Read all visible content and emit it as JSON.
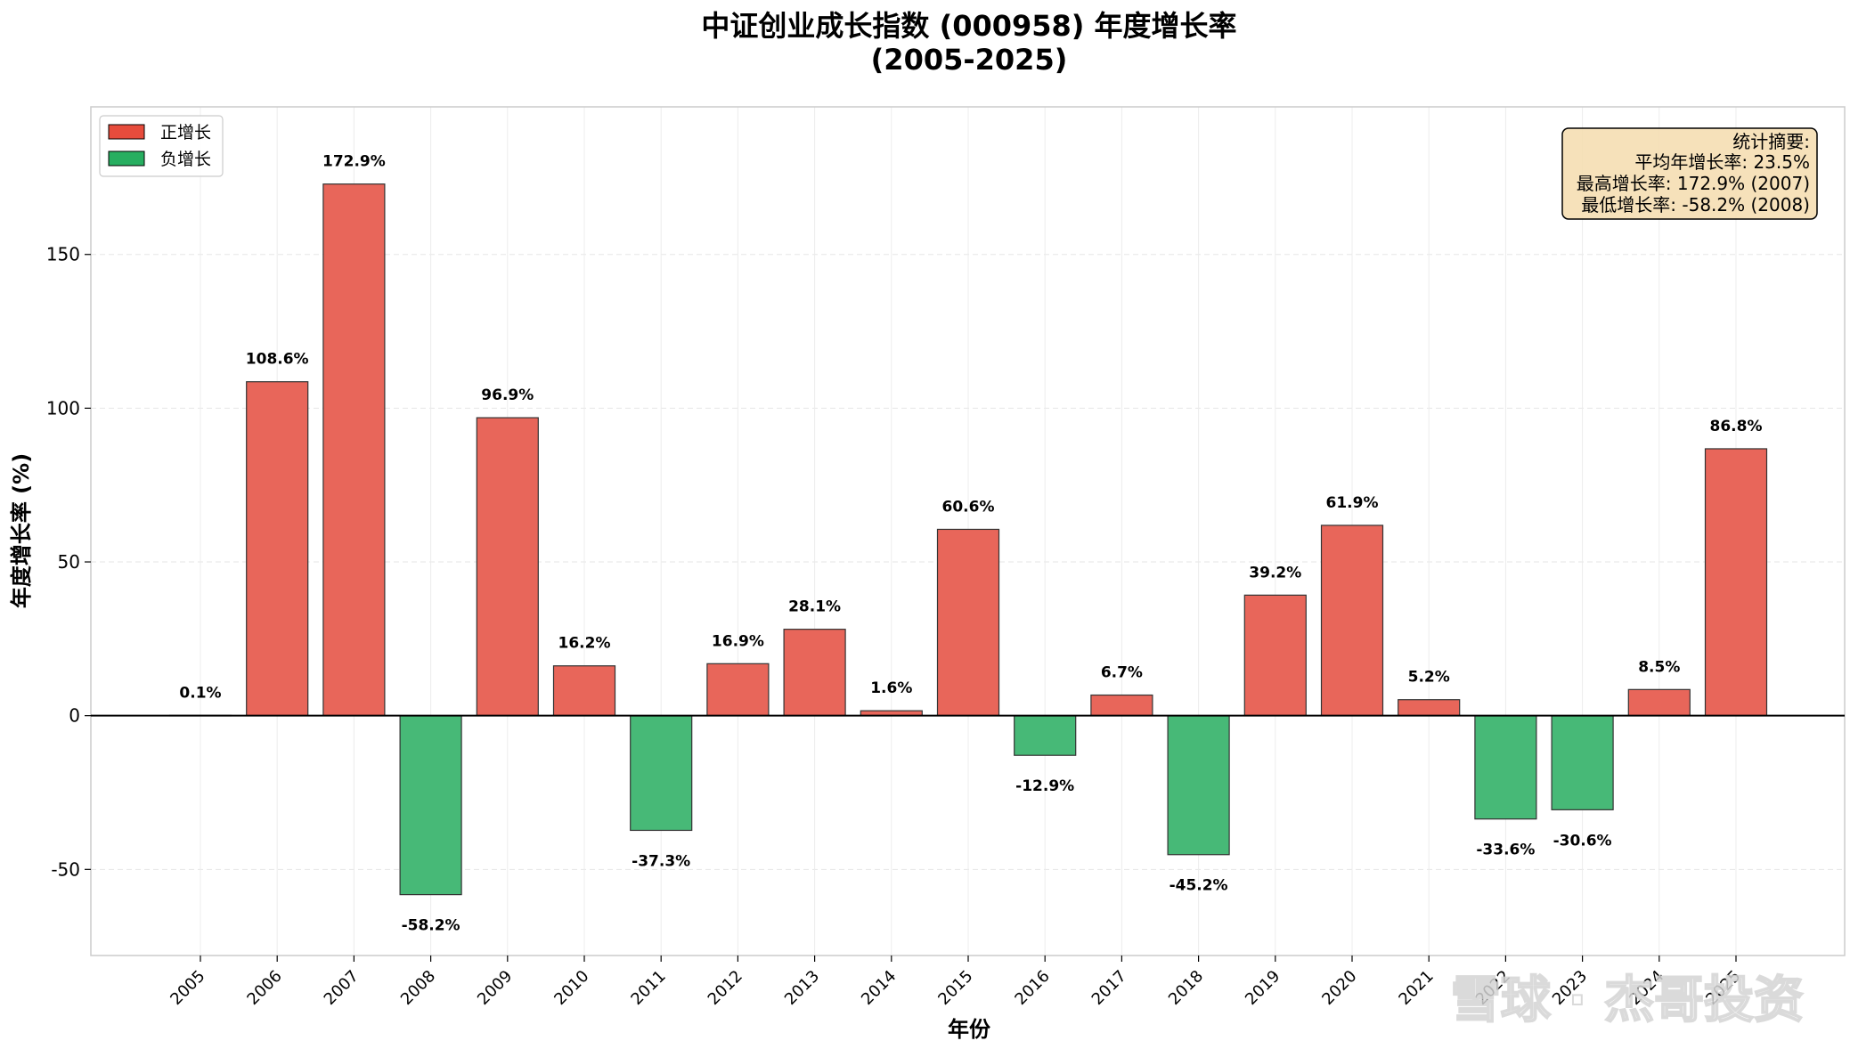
{
  "chart_data": {
    "type": "bar",
    "title_line1": "中证创业成长指数 (000958) 年度增长率",
    "title_line2": "(2005-2025)",
    "xlabel": "年份",
    "ylabel": "年度增长率 (%)",
    "ylim": [
      -78,
      198
    ],
    "yticks": [
      -50,
      0,
      50,
      100,
      150
    ],
    "ytick_labels": [
      "-50",
      "0",
      "50",
      "100",
      "150"
    ],
    "categories": [
      "2005",
      "2006",
      "2007",
      "2008",
      "2009",
      "2010",
      "2011",
      "2012",
      "2013",
      "2014",
      "2015",
      "2016",
      "2017",
      "2018",
      "2019",
      "2020",
      "2021",
      "2022",
      "2023",
      "2024",
      "2025"
    ],
    "values": [
      0.1,
      108.6,
      172.9,
      -58.2,
      96.9,
      16.2,
      -37.3,
      16.9,
      28.1,
      1.6,
      60.6,
      -12.9,
      6.7,
      -45.2,
      39.2,
      61.9,
      5.2,
      -33.6,
      -30.6,
      8.5,
      86.8
    ],
    "value_labels": [
      "0.1%",
      "108.6%",
      "172.9%",
      "-58.2%",
      "96.9%",
      "16.2%",
      "-37.3%",
      "16.9%",
      "28.1%",
      "1.6%",
      "60.6%",
      "-12.9%",
      "6.7%",
      "-45.2%",
      "39.2%",
      "61.9%",
      "5.2%",
      "-33.6%",
      "-30.6%",
      "8.5%",
      "86.8%"
    ],
    "grid": true,
    "legend_position": "top-left",
    "legend": [
      {
        "label": "正增长",
        "color": "#e74c3c"
      },
      {
        "label": "负增长",
        "color": "#27ae60"
      }
    ],
    "colors": {
      "positive": "#e8665a",
      "negative": "#47b977",
      "edge": "#333333"
    },
    "stats_box": {
      "position": "top-right",
      "lines": [
        "统计摘要:",
        "平均年增长率: 23.5%",
        "最高增长率: 172.9% (2007)",
        "最低增长率: -58.2% (2008)"
      ],
      "background": "#f5deb3"
    },
    "watermark": "雪球 · 杰哥投资"
  }
}
